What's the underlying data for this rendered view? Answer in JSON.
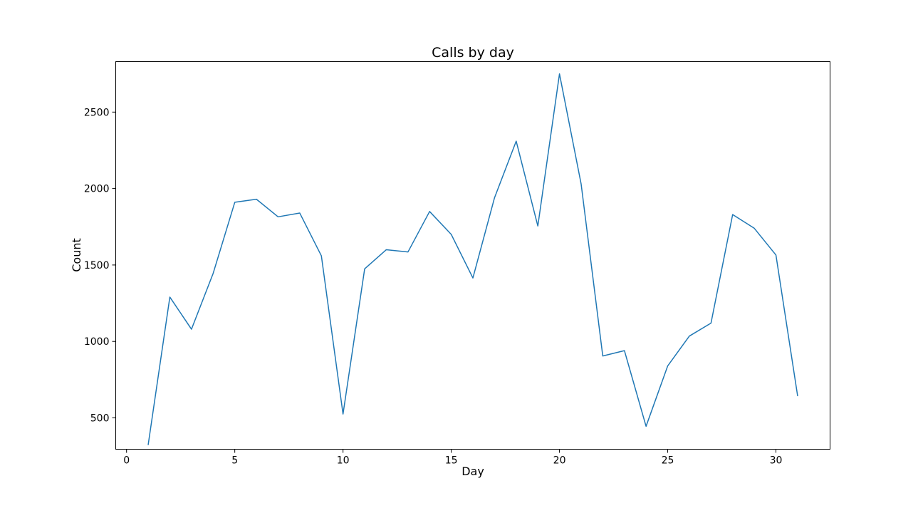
{
  "chart_data": {
    "type": "line",
    "title": "Calls by day",
    "xlabel": "Day",
    "ylabel": "Count",
    "xlim": [
      -0.5,
      32.5
    ],
    "ylim": [
      295,
      2830
    ],
    "xticks": [
      0,
      5,
      10,
      15,
      20,
      25,
      30
    ],
    "yticks": [
      500,
      1000,
      1500,
      2000,
      2500
    ],
    "grid": false,
    "legend": "none",
    "series": [
      {
        "color": "#1f77b4",
        "x": [
          1,
          2,
          3,
          4,
          5,
          6,
          7,
          8,
          9,
          10,
          11,
          12,
          13,
          14,
          15,
          16,
          17,
          18,
          19,
          20,
          21,
          22,
          23,
          24,
          25,
          26,
          27,
          28,
          29,
          30,
          31
        ],
        "y": [
          325,
          1290,
          1080,
          1445,
          1910,
          1930,
          1815,
          1840,
          1560,
          525,
          1475,
          1600,
          1585,
          1850,
          1700,
          1415,
          1940,
          2310,
          1755,
          2750,
          2030,
          905,
          940,
          445,
          840,
          1035,
          1120,
          1830,
          1740,
          1565,
          645
        ]
      }
    ]
  }
}
